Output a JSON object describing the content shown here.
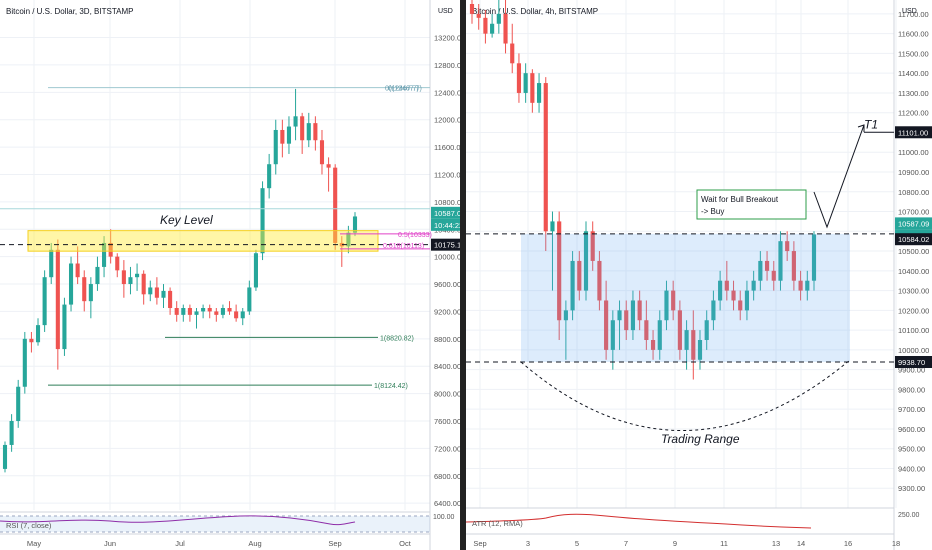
{
  "chart_data": [
    {
      "type": "candlestick",
      "title": "Bitcoin / U.S. Dollar, 3D, BITSTAMP",
      "currency": "USD",
      "ylim": [
        6300,
        13500
      ],
      "yticks": [
        13200,
        12800,
        12400,
        12000,
        11600,
        11200,
        10800,
        10400,
        10000,
        9600,
        9200,
        8800,
        8400,
        8000,
        7600,
        7200,
        6800,
        6400
      ],
      "ytick_labels": [
        "13200.00",
        "12800.00",
        "12400.00",
        "12000.00",
        "11600.00",
        "11200.00",
        "10800.00",
        "10400.00",
        "10000.00",
        "9600.00",
        "9200.00",
        "8800.00",
        "8400.00",
        "8000.00",
        "7600.00",
        "7200.00",
        "6800.00",
        "6400.00"
      ],
      "xlabels": [
        "May",
        "Jun",
        "Jul",
        "Aug",
        "Sep",
        "Oct"
      ],
      "candles": [
        [
          6900,
          7300,
          6850,
          7250
        ],
        [
          7250,
          7700,
          7150,
          7600
        ],
        [
          7600,
          8200,
          7500,
          8100
        ],
        [
          8100,
          8900,
          8000,
          8800
        ],
        [
          8800,
          8900,
          8600,
          8750
        ],
        [
          8750,
          9100,
          8700,
          9000
        ],
        [
          9000,
          9800,
          8900,
          9700
        ],
        [
          9700,
          10200,
          9600,
          10100
        ],
        [
          10100,
          10250,
          8350,
          8650
        ],
        [
          8650,
          9400,
          8550,
          9300
        ],
        [
          9300,
          10000,
          9200,
          9900
        ],
        [
          9900,
          10150,
          9600,
          9700
        ],
        [
          9700,
          9800,
          9200,
          9350
        ],
        [
          9350,
          9700,
          9100,
          9600
        ],
        [
          9600,
          10000,
          9500,
          9850
        ],
        [
          9850,
          10300,
          9700,
          10200
        ],
        [
          10200,
          10400,
          9900,
          10000
        ],
        [
          10000,
          10050,
          9700,
          9800
        ],
        [
          9800,
          9950,
          9400,
          9600
        ],
        [
          9600,
          9850,
          9450,
          9700
        ],
        [
          9700,
          9900,
          9500,
          9750
        ],
        [
          9750,
          9800,
          9300,
          9450
        ],
        [
          9450,
          9650,
          9350,
          9550
        ],
        [
          9550,
          9700,
          9300,
          9400
        ],
        [
          9400,
          9600,
          9250,
          9500
        ],
        [
          9500,
          9550,
          9150,
          9250
        ],
        [
          9250,
          9350,
          9050,
          9150
        ],
        [
          9150,
          9300,
          9050,
          9250
        ],
        [
          9250,
          9300,
          9050,
          9150
        ],
        [
          9150,
          9250,
          8950,
          9200
        ],
        [
          9200,
          9300,
          9100,
          9250
        ],
        [
          9250,
          9300,
          9100,
          9200
        ],
        [
          9200,
          9250,
          9050,
          9150
        ],
        [
          9150,
          9300,
          9100,
          9250
        ],
        [
          9250,
          9350,
          9150,
          9200
        ],
        [
          9200,
          9300,
          9050,
          9100
        ],
        [
          9100,
          9250,
          9000,
          9200
        ],
        [
          9200,
          9650,
          9150,
          9550
        ],
        [
          9550,
          10100,
          9500,
          10050
        ],
        [
          10050,
          11100,
          9950,
          11000
        ],
        [
          11000,
          11500,
          10850,
          11350
        ],
        [
          11350,
          12000,
          11200,
          11850
        ],
        [
          11850,
          12000,
          11450,
          11650
        ],
        [
          11650,
          12050,
          11500,
          11900
        ],
        [
          11900,
          12450,
          11700,
          12050
        ],
        [
          12050,
          12100,
          11500,
          11700
        ],
        [
          11700,
          12100,
          11600,
          11950
        ],
        [
          11950,
          12050,
          11550,
          11700
        ],
        [
          11700,
          11850,
          11200,
          11350
        ],
        [
          11350,
          11450,
          10950,
          11300
        ],
        [
          11300,
          11350,
          10100,
          10200
        ],
        [
          10200,
          10300,
          9850,
          10150
        ],
        [
          10150,
          10450,
          10050,
          10350
        ],
        [
          10350,
          10650,
          10300,
          10587
        ]
      ],
      "annotations": {
        "key_level_text": "Key Level",
        "fib_top": "0(12467.7)",
        "fib_top_overlap": "0(12467.7)",
        "fib_50": "0.5(10333)",
        "fib_618": "0.618(10113)",
        "fib_8820": "1(8820.82)",
        "fib_8124": "1(8124.42)"
      },
      "price_labels": {
        "current": "10587.09",
        "timer": "10:44:22",
        "level": "10175.17"
      },
      "indicator": {
        "name": "RSI (7, close)",
        "scale_labels": [
          "100.00"
        ]
      }
    },
    {
      "type": "candlestick",
      "title": "Bitcoin / U.S. Dollar, 4h, BITSTAMP",
      "currency": "USD",
      "ylim": [
        9200,
        11750
      ],
      "yticks": [
        11700,
        11600,
        11500,
        11400,
        11300,
        11200,
        11100,
        11000,
        10900,
        10800,
        10700,
        10600,
        10500,
        10400,
        10300,
        10200,
        10100,
        10000,
        9900,
        9800,
        9700,
        9600,
        9500,
        9400,
        9300
      ],
      "ytick_labels": [
        "11700.00",
        "11600.00",
        "11500.00",
        "11400.00",
        "11300.00",
        "11200.00",
        "11100.00",
        "11000.00",
        "10900.00",
        "10800.00",
        "10700.00",
        "10600.00",
        "10500.00",
        "10400.00",
        "10300.00",
        "10200.00",
        "10100.00",
        "10000.00",
        "9900.00",
        "9800.00",
        "9700.00",
        "9600.00",
        "9500.00",
        "9400.00",
        "9300.00"
      ],
      "xlabels": [
        "Sep",
        "3",
        "5",
        "7",
        "9",
        "11",
        "13",
        "14",
        "16",
        "18"
      ],
      "candles": [
        [
          11750,
          11800,
          11650,
          11700
        ],
        [
          11700,
          11750,
          11620,
          11680
        ],
        [
          11680,
          11720,
          11550,
          11600
        ],
        [
          11600,
          11700,
          11580,
          11650
        ],
        [
          11650,
          11800,
          11600,
          11700
        ],
        [
          11700,
          11800,
          11500,
          11550
        ],
        [
          11550,
          11650,
          11400,
          11450
        ],
        [
          11450,
          11500,
          11250,
          11300
        ],
        [
          11300,
          11450,
          11250,
          11400
        ],
        [
          11400,
          11420,
          11200,
          11250
        ],
        [
          11250,
          11400,
          11200,
          11350
        ],
        [
          11350,
          11380,
          10500,
          10600
        ],
        [
          10600,
          10700,
          10300,
          10650
        ],
        [
          10650,
          10700,
          10050,
          10150
        ],
        [
          10150,
          10250,
          9950,
          10200
        ],
        [
          10200,
          10500,
          10150,
          10450
        ],
        [
          10450,
          10500,
          10250,
          10300
        ],
        [
          10300,
          10650,
          10250,
          10600
        ],
        [
          10600,
          10650,
          10400,
          10450
        ],
        [
          10450,
          10500,
          10200,
          10250
        ],
        [
          10250,
          10350,
          9950,
          10000
        ],
        [
          10000,
          10200,
          9900,
          10150
        ],
        [
          10150,
          10250,
          10000,
          10200
        ],
        [
          10200,
          10250,
          10050,
          10100
        ],
        [
          10100,
          10300,
          10050,
          10250
        ],
        [
          10250,
          10300,
          10100,
          10150
        ],
        [
          10150,
          10250,
          10000,
          10050
        ],
        [
          10050,
          10100,
          9950,
          10000
        ],
        [
          10000,
          10200,
          9950,
          10150
        ],
        [
          10150,
          10350,
          10100,
          10300
        ],
        [
          10300,
          10350,
          10150,
          10200
        ],
        [
          10200,
          10250,
          9950,
          10000
        ],
        [
          10000,
          10150,
          9900,
          10100
        ],
        [
          10100,
          10200,
          9850,
          9950
        ],
        [
          9950,
          10100,
          9900,
          10050
        ],
        [
          10050,
          10200,
          10000,
          10150
        ],
        [
          10150,
          10300,
          10100,
          10250
        ],
        [
          10250,
          10400,
          10200,
          10350
        ],
        [
          10350,
          10450,
          10250,
          10300
        ],
        [
          10300,
          10350,
          10200,
          10250
        ],
        [
          10250,
          10300,
          10150,
          10200
        ],
        [
          10200,
          10350,
          10150,
          10300
        ],
        [
          10300,
          10400,
          10250,
          10350
        ],
        [
          10350,
          10500,
          10300,
          10450
        ],
        [
          10450,
          10500,
          10350,
          10400
        ],
        [
          10400,
          10450,
          10300,
          10350
        ],
        [
          10350,
          10600,
          10300,
          10550
        ],
        [
          10550,
          10600,
          10450,
          10500
        ],
        [
          10500,
          10550,
          10300,
          10350
        ],
        [
          10350,
          10400,
          10250,
          10300
        ],
        [
          10300,
          10400,
          10250,
          10350
        ],
        [
          10350,
          10600,
          10300,
          10584
        ]
      ],
      "range": {
        "top": 10587,
        "bottom": 9938.7
      },
      "annotations": {
        "callout": [
          "Wait for Bull Breakout",
          "-> Buy"
        ],
        "t1": "T1",
        "range_label": "Trading Range"
      },
      "price_labels": {
        "t1": "11101.00",
        "current": "10587.09",
        "timer": "02:44:21",
        "level": "10584.02",
        "range_bottom": "9938.70"
      },
      "indicator": {
        "name": "ATR (12, RMA)",
        "scale_labels": [
          "250.00"
        ]
      }
    }
  ],
  "colors": {
    "up": "#26a69a",
    "down": "#ef5350",
    "grid": "#f0f3fa",
    "axis_text": "#555555"
  }
}
